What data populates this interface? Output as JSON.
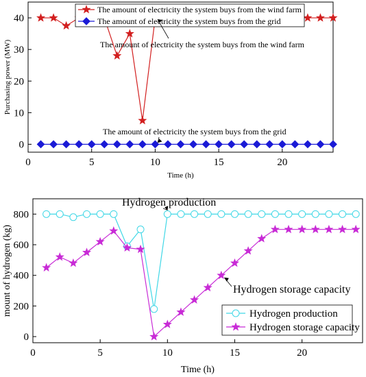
{
  "chart_data": [
    {
      "type": "line",
      "title": "",
      "xlabel": "Time (h)",
      "ylabel": "Purchasing power (MW)",
      "xlim": [
        0,
        24
      ],
      "ylim": [
        -2.5,
        45
      ],
      "xticks": [
        0,
        5,
        10,
        15,
        20
      ],
      "yticks": [
        0,
        10,
        20,
        30,
        40
      ],
      "x": [
        1,
        2,
        3,
        4,
        5,
        6,
        7,
        8,
        9,
        10,
        11,
        12,
        13,
        14,
        15,
        16,
        17,
        18,
        19,
        20,
        21,
        22,
        23,
        24
      ],
      "series": [
        {
          "name": "The amount of electricity the system buys from the wind farm",
          "color": "#d21f1f",
          "marker": "star",
          "values": [
            40,
            40,
            37.5,
            40,
            40,
            40,
            28,
            35,
            7.5,
            40,
            40,
            40,
            40,
            40,
            40,
            40,
            40,
            40,
            40,
            40,
            40,
            40,
            40,
            40
          ]
        },
        {
          "name": "The amount of electricity the system buys from the grid",
          "color": "#1a1ad6",
          "marker": "diamond",
          "values": [
            0,
            0,
            0,
            0,
            0,
            0,
            0,
            0,
            0,
            0,
            0,
            0,
            0,
            0,
            0,
            0,
            0,
            0,
            0,
            0,
            0,
            0,
            0,
            0
          ]
        }
      ],
      "legend": "top-center",
      "grid": false,
      "annotations": [
        {
          "text": "The amount of electricity the system buys from the wind farm",
          "x": 10,
          "y": 40
        },
        {
          "text": "The amount of electricity the system buys from the grid",
          "x": 10,
          "y": 0
        }
      ]
    },
    {
      "type": "line",
      "title": "",
      "xlabel": "Time (h)",
      "ylabel": "mount of hydrogen (kg)",
      "xlim": [
        0,
        24.5
      ],
      "ylim": [
        -40,
        900
      ],
      "xticks": [
        0,
        5,
        10,
        15,
        20
      ],
      "yticks": [
        0,
        200,
        400,
        600,
        800
      ],
      "x": [
        1,
        2,
        3,
        4,
        5,
        6,
        7,
        8,
        9,
        10,
        11,
        12,
        13,
        14,
        15,
        16,
        17,
        18,
        19,
        20,
        21,
        22,
        23,
        24
      ],
      "series": [
        {
          "name": "Hydrogen production",
          "color": "#3fd7e6",
          "marker": "circle",
          "values": [
            800,
            800,
            780,
            800,
            800,
            800,
            590,
            700,
            180,
            800,
            800,
            800,
            800,
            800,
            800,
            800,
            800,
            800,
            800,
            800,
            800,
            800,
            800,
            800
          ]
        },
        {
          "name": "Hydrogen storage capacity",
          "color": "#c82bd6",
          "marker": "star",
          "values": [
            450,
            520,
            480,
            550,
            620,
            690,
            580,
            570,
            0,
            80,
            160,
            240,
            320,
            400,
            480,
            560,
            640,
            700,
            700,
            700,
            700,
            700,
            700,
            700
          ]
        }
      ],
      "legend": "bottom-right",
      "grid": false,
      "annotations": [
        {
          "text": "Hydrogen production",
          "x": 10,
          "y": 800
        },
        {
          "text": "Hydrogen storage capacity",
          "x": 14,
          "y": 400
        }
      ]
    }
  ]
}
